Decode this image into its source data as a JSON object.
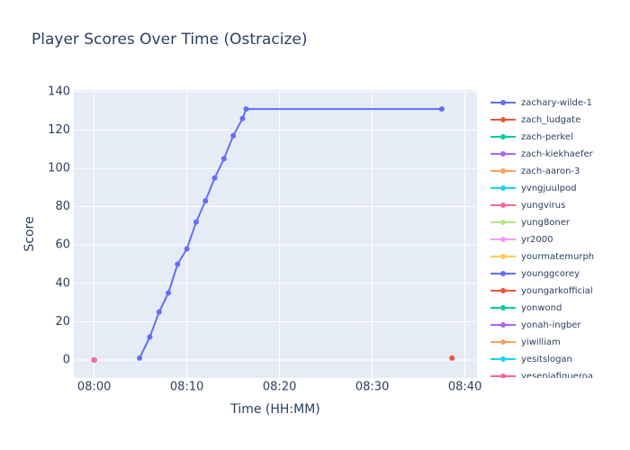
{
  "chart_data": {
    "type": "line",
    "title": "Player Scores Over Time (Ostracize)",
    "x_label": "Time (HH:MM)",
    "y_label": "Score",
    "xlim": [
      477.8,
      521.3
    ],
    "ylim": [
      -9.4,
      140.9
    ],
    "xticks": [
      {
        "value": 480,
        "label": "08:00"
      },
      {
        "value": 490,
        "label": "08:10"
      },
      {
        "value": 500,
        "label": "08:20"
      },
      {
        "value": 510,
        "label": "08:30"
      },
      {
        "value": 520,
        "label": "08:40"
      }
    ],
    "yticks": [
      0,
      20,
      40,
      60,
      80,
      100,
      120,
      140
    ],
    "grid": true,
    "series": [
      {
        "name": "zachary-wilde-1",
        "color": "#636efa",
        "x": [
          484.9,
          486,
          487,
          488,
          489,
          490,
          491,
          492,
          493,
          494,
          495,
          496,
          496.4,
          517.5
        ],
        "values": [
          1,
          12,
          25,
          35,
          50,
          58,
          72,
          83,
          95,
          105,
          117,
          126,
          131,
          131
        ]
      },
      {
        "name": "zach_ludgate",
        "color": "#ef553b",
        "x": [
          518.6
        ],
        "values": [
          1
        ]
      },
      {
        "name": "zach-perkel",
        "color": "#00cc96",
        "x": [
          480
        ],
        "values": [
          0
        ]
      },
      {
        "name": "zach-kiekhaefer",
        "color": "#ab63fa",
        "x": [
          480
        ],
        "values": [
          0
        ]
      },
      {
        "name": "zach-aaron-3",
        "color": "#ffa15a",
        "x": [
          480
        ],
        "values": [
          0
        ]
      },
      {
        "name": "yvngjuulpod",
        "color": "#19d3f3",
        "x": [
          480
        ],
        "values": [
          0
        ]
      },
      {
        "name": "yungvirus",
        "color": "#ff6692",
        "x": [
          480
        ],
        "values": [
          0
        ]
      },
      {
        "name": "yung8oner",
        "color": "#b6e880",
        "x": [
          480
        ],
        "values": [
          0
        ]
      },
      {
        "name": "yr2000",
        "color": "#ff97ff",
        "x": [
          480
        ],
        "values": [
          0
        ]
      },
      {
        "name": "yourmatemurph",
        "color": "#fecb52",
        "x": [
          480
        ],
        "values": [
          0
        ]
      },
      {
        "name": "younggcorey",
        "color": "#636efa",
        "x": [
          480
        ],
        "values": [
          0
        ]
      },
      {
        "name": "youngarkofficial",
        "color": "#ef553b",
        "x": [
          480
        ],
        "values": [
          0
        ]
      },
      {
        "name": "yonwond",
        "color": "#00cc96",
        "x": [
          480
        ],
        "values": [
          0
        ]
      },
      {
        "name": "yonah-ingber",
        "color": "#ab63fa",
        "x": [
          480
        ],
        "values": [
          0
        ]
      },
      {
        "name": "yiwilliam",
        "color": "#ffa15a",
        "x": [
          480
        ],
        "values": [
          0
        ]
      },
      {
        "name": "yesitslogan",
        "color": "#19d3f3",
        "x": [
          480
        ],
        "values": [
          0
        ]
      },
      {
        "name": "yeseniafigueroa",
        "color": "#ff6692",
        "x": [
          480
        ],
        "values": [
          0
        ]
      }
    ]
  }
}
